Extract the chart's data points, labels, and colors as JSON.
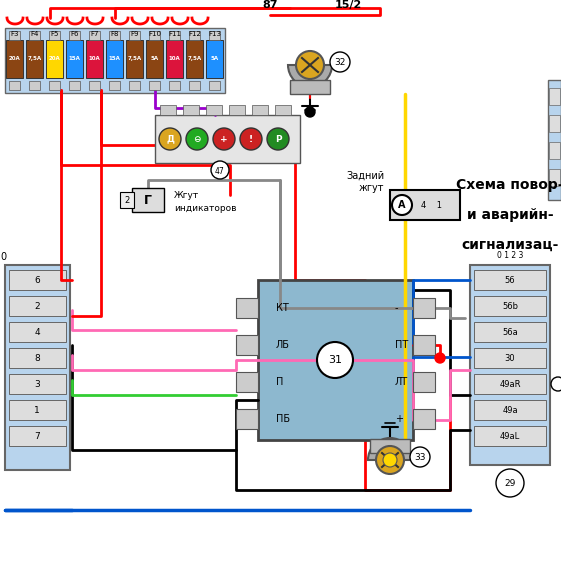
{
  "bg_color": "#ffffff",
  "title_lines": [
    "Схема повор-",
    "и аварийн-",
    "сигнализац-"
  ],
  "fuse_labels": [
    "F3",
    "F4",
    "F5",
    "F6",
    "F7",
    "F8",
    "F9",
    "F10",
    "F11",
    "F12",
    "F13"
  ],
  "fuse_amps": [
    "20A",
    "7,5A",
    "20A",
    "15A",
    "10A",
    "15A",
    "7,5A",
    "5A",
    "10A",
    "7,5A",
    "5A"
  ],
  "fuse_colors": [
    "#8B4513",
    "#8B4513",
    "#FFD700",
    "#1E90FF",
    "#DC143C",
    "#1E90FF",
    "#8B4513",
    "#8B4513",
    "#DC143C",
    "#8B4513",
    "#1E90FF"
  ],
  "relay_terms_left": [
    "КТ",
    "ЛБ",
    "П",
    "ПБ"
  ],
  "relay_terms_right": [
    "-",
    "ПТ",
    "ЛТ",
    "+"
  ],
  "left_rows": [
    "6",
    "2",
    "4",
    "8",
    "3",
    "1",
    "7"
  ],
  "right_rows": [
    "56",
    "56b",
    "56a",
    "30",
    "49aR",
    "49a",
    "49aL"
  ],
  "wire_red": "#ff0000",
  "wire_blue": "#0055cc",
  "wire_black": "#000000",
  "wire_gray": "#888888",
  "wire_yellow": "#FFD700",
  "wire_pink": "#ff69b4",
  "wire_green": "#32cd32",
  "wire_purple": "#9900cc",
  "wire_magenta": "#ff00ff",
  "fuse_box_color": "#b8d4ed",
  "relay_color": "#8db8cf",
  "connector_color": "#b8d4ed"
}
